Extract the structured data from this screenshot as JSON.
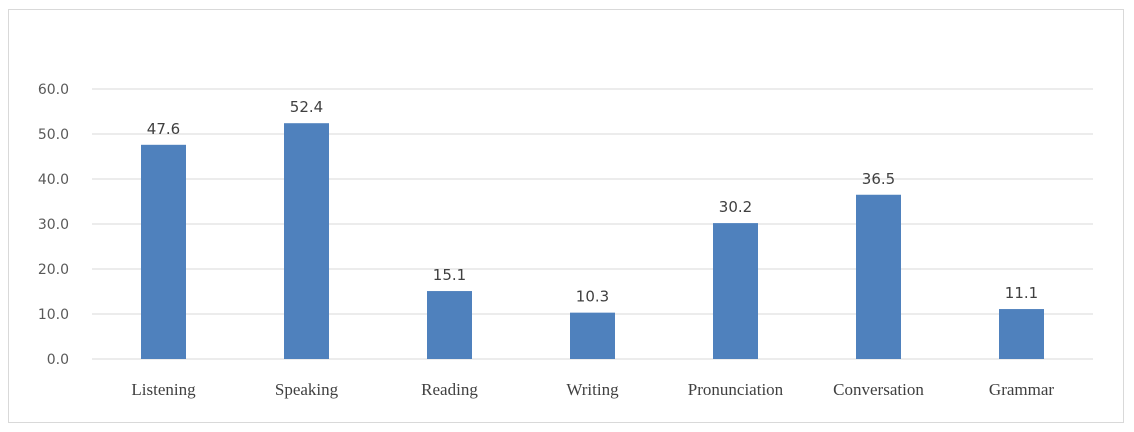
{
  "chart_data": {
    "type": "bar",
    "title": "",
    "xlabel": "",
    "ylabel": "",
    "categories": [
      "Listening",
      "Speaking",
      "Reading",
      "Writing",
      "Pronunciation",
      "Conversation",
      "Grammar"
    ],
    "values": [
      47.6,
      52.4,
      15.1,
      10.3,
      30.2,
      36.5,
      11.1
    ],
    "value_labels": [
      "47.6",
      "52.4",
      "15.1",
      "10.3",
      "30.2",
      "36.5",
      "11.1"
    ],
    "y_ticks": [
      "0.0",
      "10.0",
      "20.0",
      "30.0",
      "40.0",
      "50.0",
      "60.0"
    ],
    "ylim": [
      0,
      60
    ],
    "grid": true,
    "legend": "none",
    "bar_color": "#4f81bd",
    "grid_color": "#d9d9d9"
  }
}
